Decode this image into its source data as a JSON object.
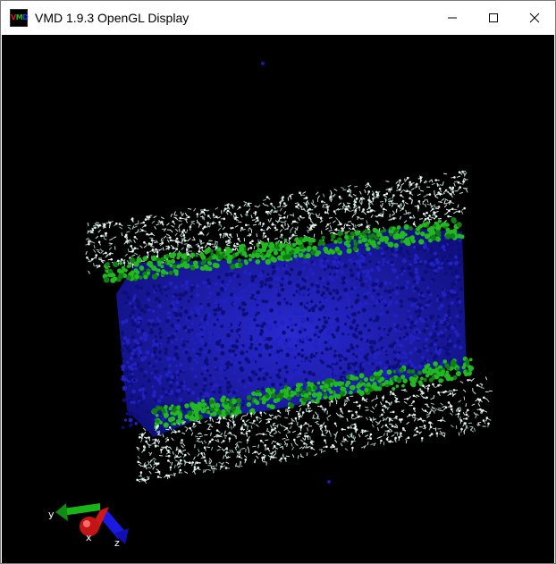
{
  "window": {
    "title": "VMD 1.9.3 OpenGL Display",
    "controls": {
      "minimize": "minimize-icon",
      "maximize": "maximize-icon",
      "close": "close-icon"
    }
  },
  "axes": {
    "x_label": "x",
    "y_label": "y",
    "z_label": "z"
  },
  "colors": {
    "background": "#000000",
    "core_blue": "#1a1aa8",
    "headgroup_green": "#22b822",
    "tail_white": "#cfe6df",
    "axis_x": "#d01818",
    "axis_y": "#18b418",
    "axis_z": "#1a1ae0"
  }
}
